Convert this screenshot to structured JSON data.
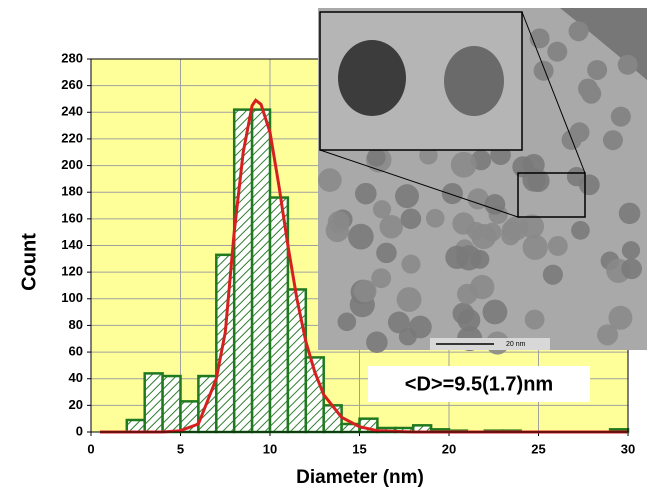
{
  "chart_data": {
    "type": "histogram",
    "x_label": "Diameter (nm)",
    "y_label": "Count",
    "bins": [
      2,
      3,
      4,
      5,
      6,
      7,
      8,
      9,
      10,
      11,
      12,
      13,
      14,
      15,
      16,
      17,
      18,
      19,
      20,
      21,
      22,
      23,
      24,
      25,
      26,
      27,
      28,
      29,
      30
    ],
    "values": [
      9,
      44,
      42,
      23,
      42,
      133,
      242,
      242,
      176,
      107,
      56,
      20,
      6,
      10,
      3,
      3,
      5,
      2,
      1,
      0,
      1,
      1,
      0,
      0,
      0,
      0,
      0,
      2
    ],
    "color": "#1f7a1f",
    "fit": {
      "color": "#d62020",
      "x": [
        0.5,
        2,
        4,
        5,
        6,
        7,
        7.5,
        8,
        8.5,
        9,
        9.2,
        9.5,
        10,
        10.5,
        11,
        11.5,
        12,
        12.5,
        13,
        14,
        15,
        16,
        18,
        20,
        25,
        30
      ],
      "values": [
        0,
        0,
        0,
        1,
        6,
        40,
        75,
        150,
        210,
        245,
        249,
        246,
        225,
        185,
        140,
        100,
        68,
        45,
        28,
        11,
        4,
        1,
        0,
        0,
        0,
        0
      ]
    },
    "annotation": "<D>=9.5(1.7)nm",
    "xlim": [
      0,
      30
    ],
    "xticks": [
      0,
      5,
      10,
      15,
      20,
      25,
      30
    ],
    "ylim": [
      0,
      280
    ],
    "yticks": [
      0,
      20,
      40,
      60,
      80,
      100,
      120,
      140,
      160,
      180,
      200,
      220,
      240,
      260,
      280
    ],
    "grid": true,
    "background": "#ffff99"
  },
  "inset": {
    "scale_bar": "20 nm"
  }
}
